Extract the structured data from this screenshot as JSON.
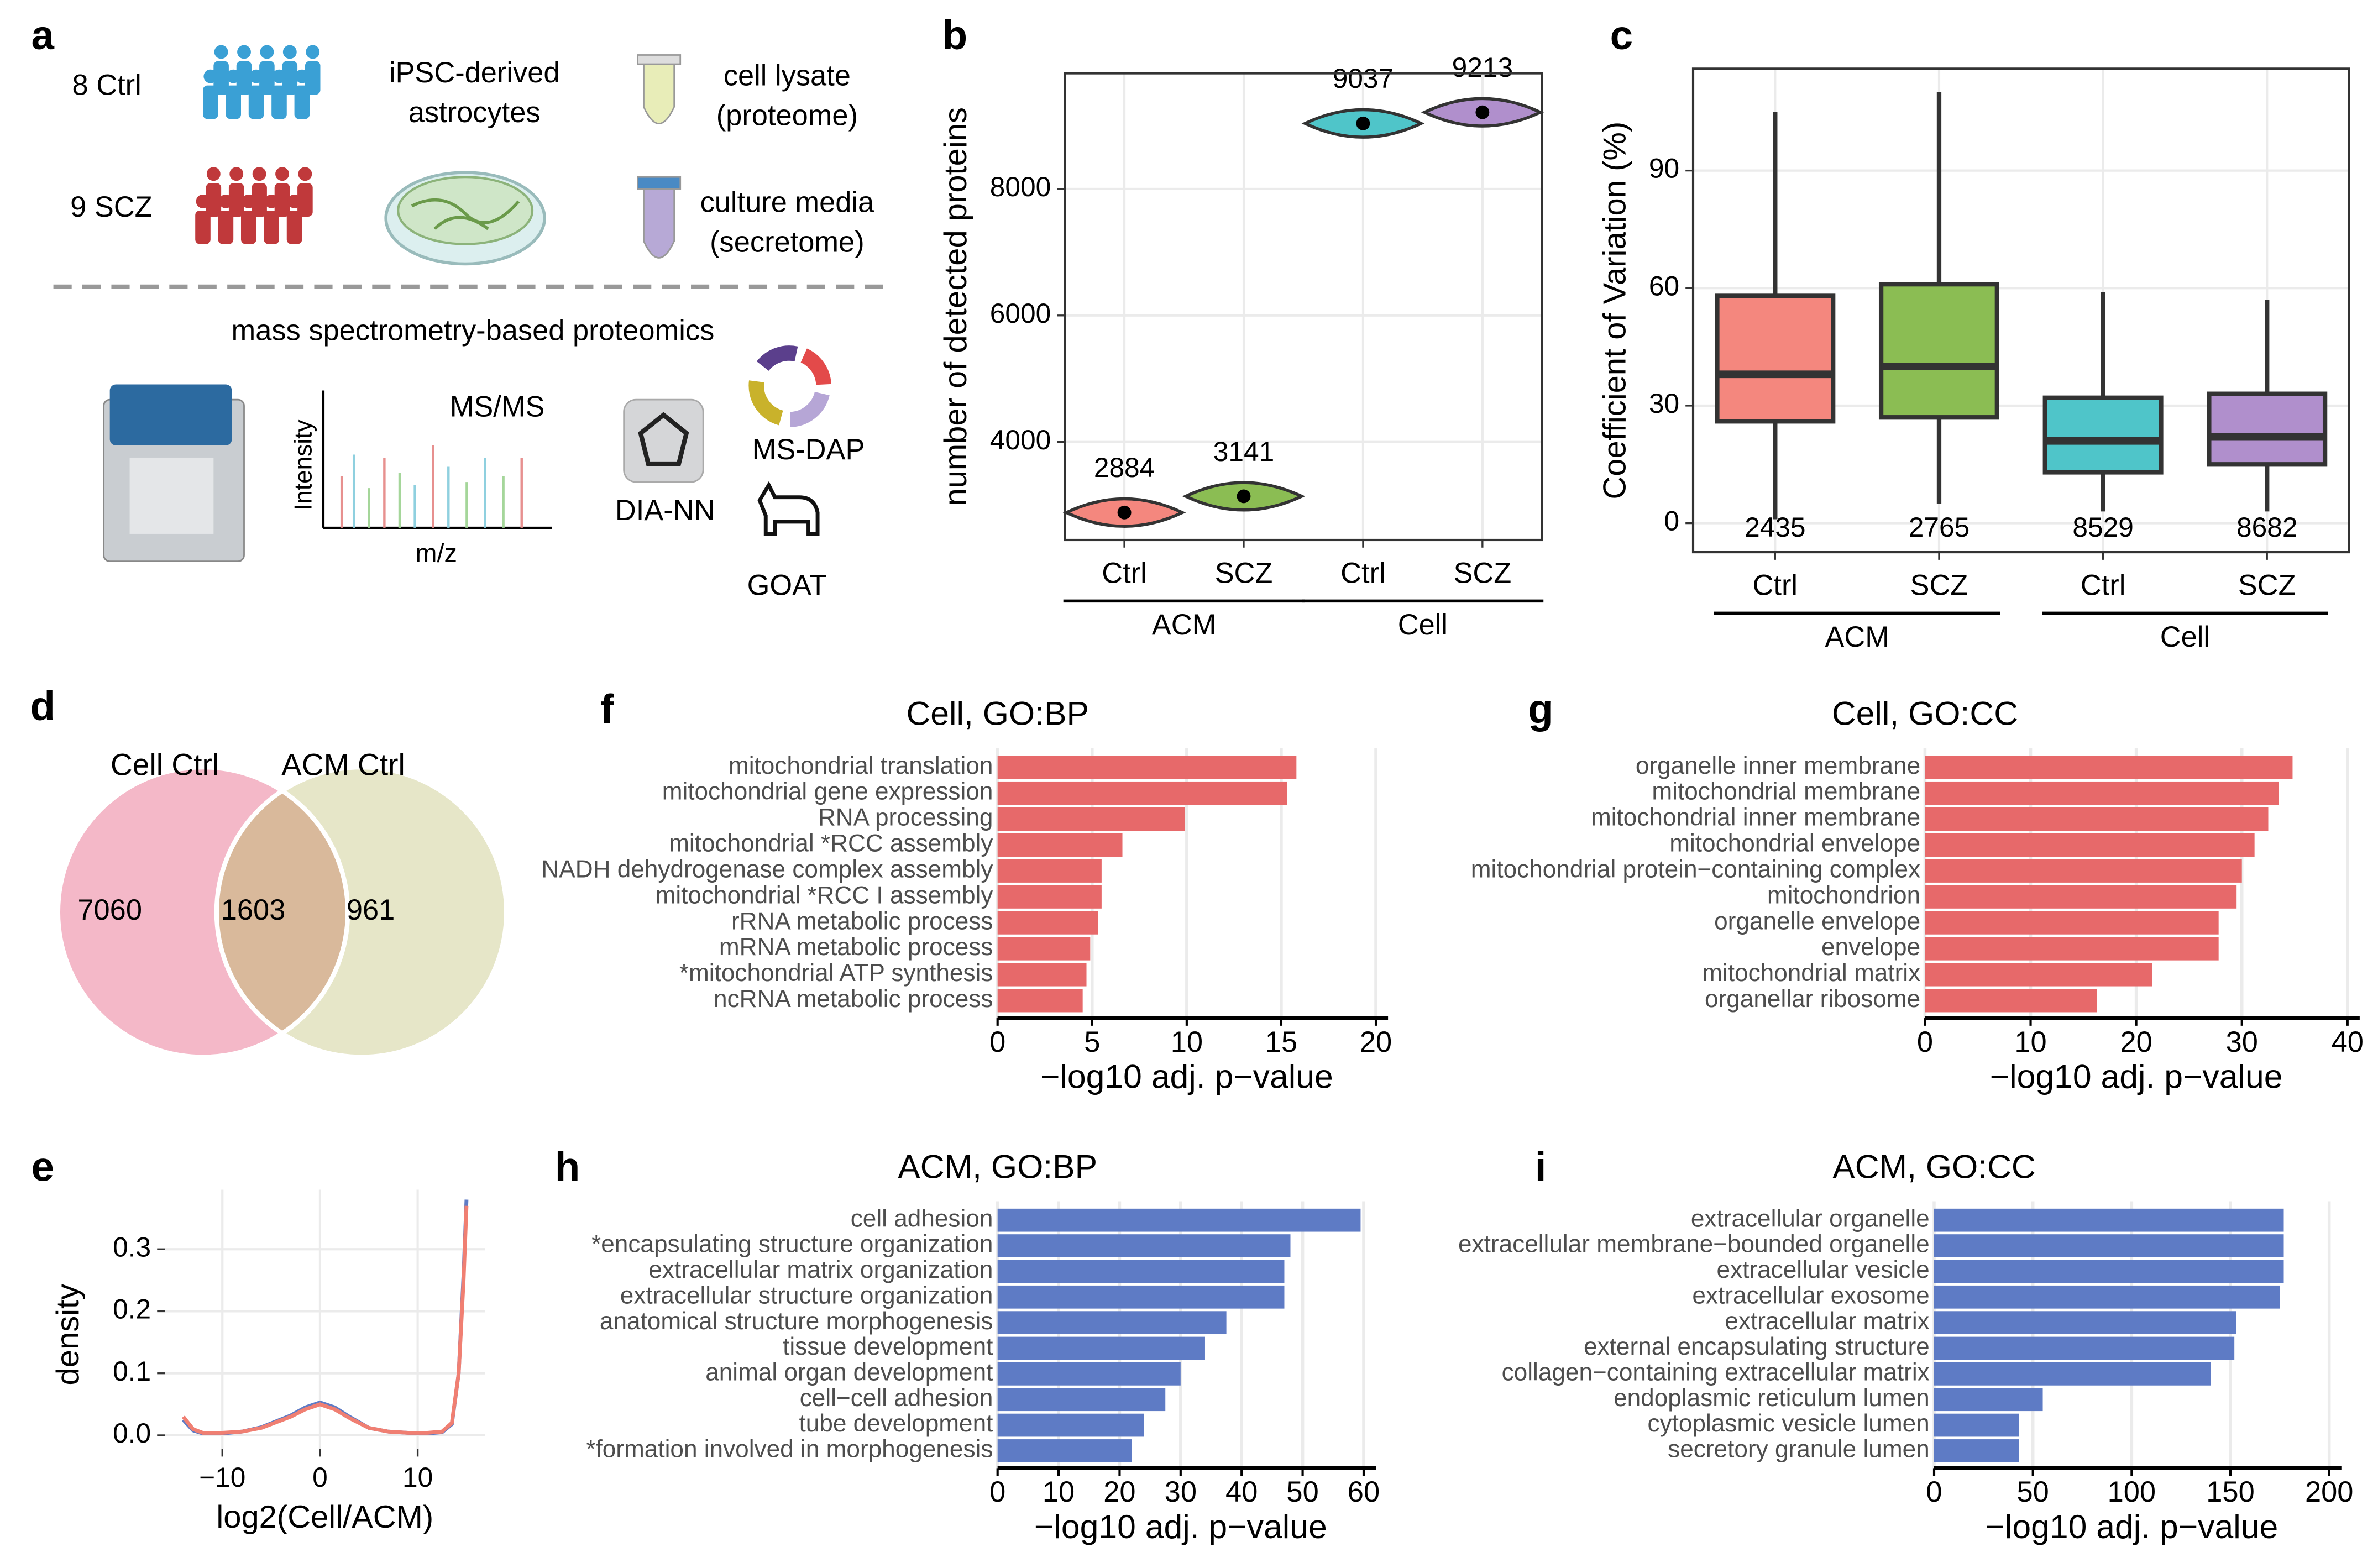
{
  "panel_labels": [
    "a",
    "b",
    "c",
    "d",
    "e",
    "f",
    "g",
    "h",
    "i"
  ],
  "schematic": {
    "groups": [
      "8 Ctrl",
      "9 SCZ"
    ],
    "cells": [
      "iPSC-derived",
      "astrocytes"
    ],
    "lysate": [
      "cell lysate",
      "(proteome)"
    ],
    "media": [
      "culture media",
      "(secretome)"
    ],
    "method": "mass spectrometry-based proteomics",
    "spectrum_title": "MS/MS",
    "y_label": "Intensity",
    "x_label": "m/z",
    "tools": [
      "DIA-NN",
      "MS-DAP",
      "GOAT"
    ]
  },
  "chart_data": [
    {
      "type": "violin",
      "y_label": "number of detected proteins",
      "categories": [
        "Ctrl",
        "SCZ",
        "Ctrl",
        "SCZ"
      ],
      "group_labels": [
        "ACM",
        "Cell"
      ],
      "values": [
        2884,
        3141,
        9037,
        9213
      ],
      "colors": [
        "#f4877e",
        "#8bbd53",
        "#4fc5c9",
        "#b08fcc"
      ],
      "ylim": [
        2450,
        9830
      ],
      "yticks": [
        4000,
        6000,
        8000
      ],
      "grid": true
    },
    {
      "type": "box",
      "y_label": "Coefficient of Variation (%)",
      "categories": [
        "Ctrl",
        "SCZ",
        "Ctrl",
        "SCZ"
      ],
      "group_labels": [
        "ACM",
        "Cell"
      ],
      "low": [
        1,
        5,
        3,
        3
      ],
      "q1": [
        26,
        27,
        13,
        15
      ],
      "median": [
        38,
        40,
        21,
        22
      ],
      "q3": [
        58,
        61,
        32,
        33
      ],
      "high": [
        105,
        110,
        59,
        57
      ],
      "counts": [
        2435,
        2765,
        8529,
        8682
      ],
      "colors": [
        "#f4877e",
        "#8bbd53",
        "#4fc5c9",
        "#b08fcc"
      ],
      "ylim": [
        -7.4,
        116
      ],
      "yticks": [
        0,
        30,
        60,
        90
      ],
      "grid": true
    },
    {
      "type": "venn",
      "sets": [
        "Cell Ctrl",
        "ACM Ctrl"
      ],
      "values": [
        7060,
        1603,
        961
      ],
      "colors": [
        "#f4b8c8",
        "#d9b99b",
        "#e6e6c8"
      ]
    },
    {
      "type": "line",
      "x_label": "log2(Cell/ACM)",
      "y_label": "density",
      "x": [
        -14,
        -13,
        -12,
        -10,
        -8,
        -6,
        -3,
        -1.5,
        0,
        1.5,
        3,
        5,
        7,
        9,
        11,
        12.5,
        13.5,
        14.2,
        14.7,
        15
      ],
      "series": [
        {
          "color": "#5e7bc5",
          "values": [
            0.025,
            0.008,
            0.003,
            0.003,
            0.006,
            0.013,
            0.032,
            0.045,
            0.053,
            0.045,
            0.03,
            0.012,
            0.006,
            0.004,
            0.003,
            0.005,
            0.018,
            0.1,
            0.26,
            0.38
          ]
        },
        {
          "color": "#f07f72",
          "values": [
            0.03,
            0.01,
            0.004,
            0.004,
            0.006,
            0.012,
            0.03,
            0.042,
            0.05,
            0.042,
            0.028,
            0.012,
            0.006,
            0.004,
            0.004,
            0.006,
            0.02,
            0.1,
            0.25,
            0.37
          ]
        }
      ],
      "xlim": [
        -15.9,
        16.9
      ],
      "xticks": [
        {
          "value": -10,
          "label": "−10"
        },
        0,
        10
      ],
      "ylim": [
        -0.022,
        0.396
      ],
      "yticks": [
        {
          "value": 0,
          "label": "0.0"
        },
        0.1,
        0.2,
        0.3
      ],
      "grid": true
    },
    {
      "type": "hbar",
      "title": "Cell, GO:BP",
      "x_label": "−log10 adj. p−value",
      "color": "#e7696a",
      "categories": [
        "mitochondrial translation",
        "mitochondrial gene expression",
        "RNA processing",
        "mitochondrial *RCC assembly",
        "NADH dehydrogenase complex assembly",
        "mitochondrial *RCC I assembly",
        "rRNA metabolic process",
        "mRNA metabolic process",
        "*mitochondrial ATP synthesis",
        "ncRNA metabolic process"
      ],
      "values": [
        15.8,
        15.3,
        9.9,
        6.6,
        5.5,
        5.5,
        5.3,
        4.9,
        4.7,
        4.5
      ],
      "xlim": [
        0,
        20
      ],
      "xticks": [
        0,
        5,
        10,
        15,
        20
      ],
      "grid": true
    },
    {
      "type": "hbar",
      "title": "Cell, GO:CC",
      "x_label": "−log10 adj. p−value",
      "color": "#e7696a",
      "categories": [
        "organelle inner membrane",
        "mitochondrial membrane",
        "mitochondrial inner membrane",
        "mitochondrial envelope",
        "mitochondrial protein−containing complex",
        "mitochondrion",
        "organelle envelope",
        "envelope",
        "mitochondrial matrix",
        "organellar ribosome"
      ],
      "values": [
        34.8,
        33.5,
        32.5,
        31.2,
        30,
        29.5,
        27.8,
        27.8,
        21.5,
        16.3
      ],
      "xlim": [
        0,
        40
      ],
      "xticks": [
        0,
        10,
        20,
        30,
        40
      ],
      "grid": true
    },
    {
      "type": "hbar",
      "title": "ACM, GO:BP",
      "x_label": "−log10 adj. p−value",
      "color": "#5e7bc5",
      "categories": [
        "cell adhesion",
        "*encapsulating structure organization",
        "extracellular matrix organization",
        "extracellular structure organization",
        "anatomical structure morphogenesis",
        "tissue development",
        "animal organ development",
        "cell−cell adhesion",
        "tube development",
        "*formation involved in morphogenesis"
      ],
      "values": [
        59.5,
        48,
        47,
        47,
        37.5,
        34,
        30,
        27.5,
        24,
        22
      ],
      "xlim": [
        0,
        60
      ],
      "xticks": [
        0,
        10,
        20,
        30,
        40,
        50,
        60
      ],
      "grid": true
    },
    {
      "type": "hbar",
      "title": "ACM, GO:CC",
      "x_label": "−log10 adj. p−value",
      "color": "#5e7bc5",
      "categories": [
        "extracellular organelle",
        "extracellular membrane−bounded organelle",
        "extracellular vesicle",
        "extracellular exosome",
        "extracellular matrix",
        "external encapsulating structure",
        "collagen−containing extracellular matrix",
        "endoplasmic reticulum lumen",
        "cytoplasmic vesicle lumen",
        "secretory granule lumen"
      ],
      "values": [
        177,
        177,
        177,
        175,
        153,
        152,
        140,
        55,
        43,
        43
      ],
      "xlim": [
        0,
        200
      ],
      "xticks": [
        0,
        50,
        100,
        150,
        200
      ],
      "grid": true
    }
  ]
}
